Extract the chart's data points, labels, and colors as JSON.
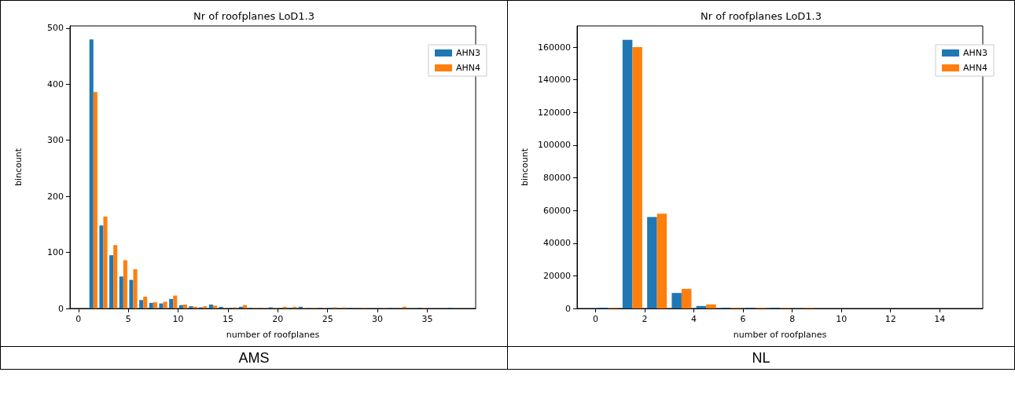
{
  "chart_data": [
    {
      "type": "histogram",
      "title": "Nr of roofplanes LoD1.3",
      "xlabel": "number of roofplanes",
      "ylabel": "bincount",
      "annotations": [
        "AMS"
      ],
      "bins": [
        1,
        2,
        3,
        4,
        5,
        6,
        7,
        8,
        9,
        10,
        11,
        12,
        13,
        14,
        15,
        16,
        17,
        18,
        19,
        20,
        21,
        22,
        23,
        24,
        25,
        26,
        27,
        28,
        29,
        30,
        31,
        32,
        33,
        34,
        35,
        36,
        37,
        38
      ],
      "series": [
        {
          "name": "AHN3",
          "color": "#1f77b4",
          "values": [
            480,
            148,
            95,
            57,
            51,
            15,
            10,
            9,
            17,
            6,
            4,
            2,
            7,
            3,
            1,
            3,
            1,
            0,
            2,
            1,
            1,
            3,
            0,
            1,
            1,
            0,
            1,
            0,
            0,
            0,
            1,
            0,
            0,
            1,
            0,
            0,
            1
          ]
        },
        {
          "name": "AHN4",
          "color": "#ff7f0e",
          "values": [
            386,
            164,
            113,
            86,
            70,
            21,
            11,
            12,
            23,
            7,
            3,
            4,
            5,
            1,
            2,
            6,
            1,
            1,
            1,
            3,
            3,
            1,
            1,
            1,
            2,
            2,
            0,
            1,
            0,
            1,
            0,
            3,
            0,
            1,
            0,
            0,
            0
          ]
        }
      ],
      "xlim": [
        -0.85,
        39.85
      ],
      "xticks": [
        0,
        5,
        10,
        15,
        20,
        25,
        30,
        35
      ],
      "ylim": [
        0,
        504
      ],
      "yticks": [
        0,
        100,
        200,
        300,
        400,
        500
      ],
      "grid": false,
      "legend": "top right"
    },
    {
      "type": "histogram",
      "title": "Nr of roofplanes LoD1.3",
      "xlabel": "number of roofplanes",
      "ylabel": "bincount",
      "annotations": [
        "NL"
      ],
      "bins": [
        0,
        1,
        2,
        3,
        4,
        5,
        6,
        7,
        8,
        9,
        10,
        11,
        12,
        13,
        14,
        15
      ],
      "series": [
        {
          "name": "AHN3",
          "color": "#1f77b4",
          "values": [
            500,
            164500,
            56000,
            9500,
            1500,
            500,
            500,
            500,
            0,
            0,
            0,
            0,
            0,
            0,
            0
          ]
        },
        {
          "name": "AHN4",
          "color": "#ff7f0e",
          "values": [
            500,
            160000,
            58000,
            12000,
            2500,
            500,
            500,
            500,
            500,
            0,
            0,
            0,
            0,
            0,
            0
          ]
        }
      ],
      "xlim": [
        -0.75,
        15.75
      ],
      "xticks": [
        0,
        2,
        4,
        6,
        8,
        10,
        12,
        14
      ],
      "ylim": [
        0,
        173000
      ],
      "yticks": [
        0,
        20000,
        40000,
        60000,
        80000,
        100000,
        120000,
        140000,
        160000
      ],
      "grid": false,
      "legend": "top right"
    }
  ]
}
